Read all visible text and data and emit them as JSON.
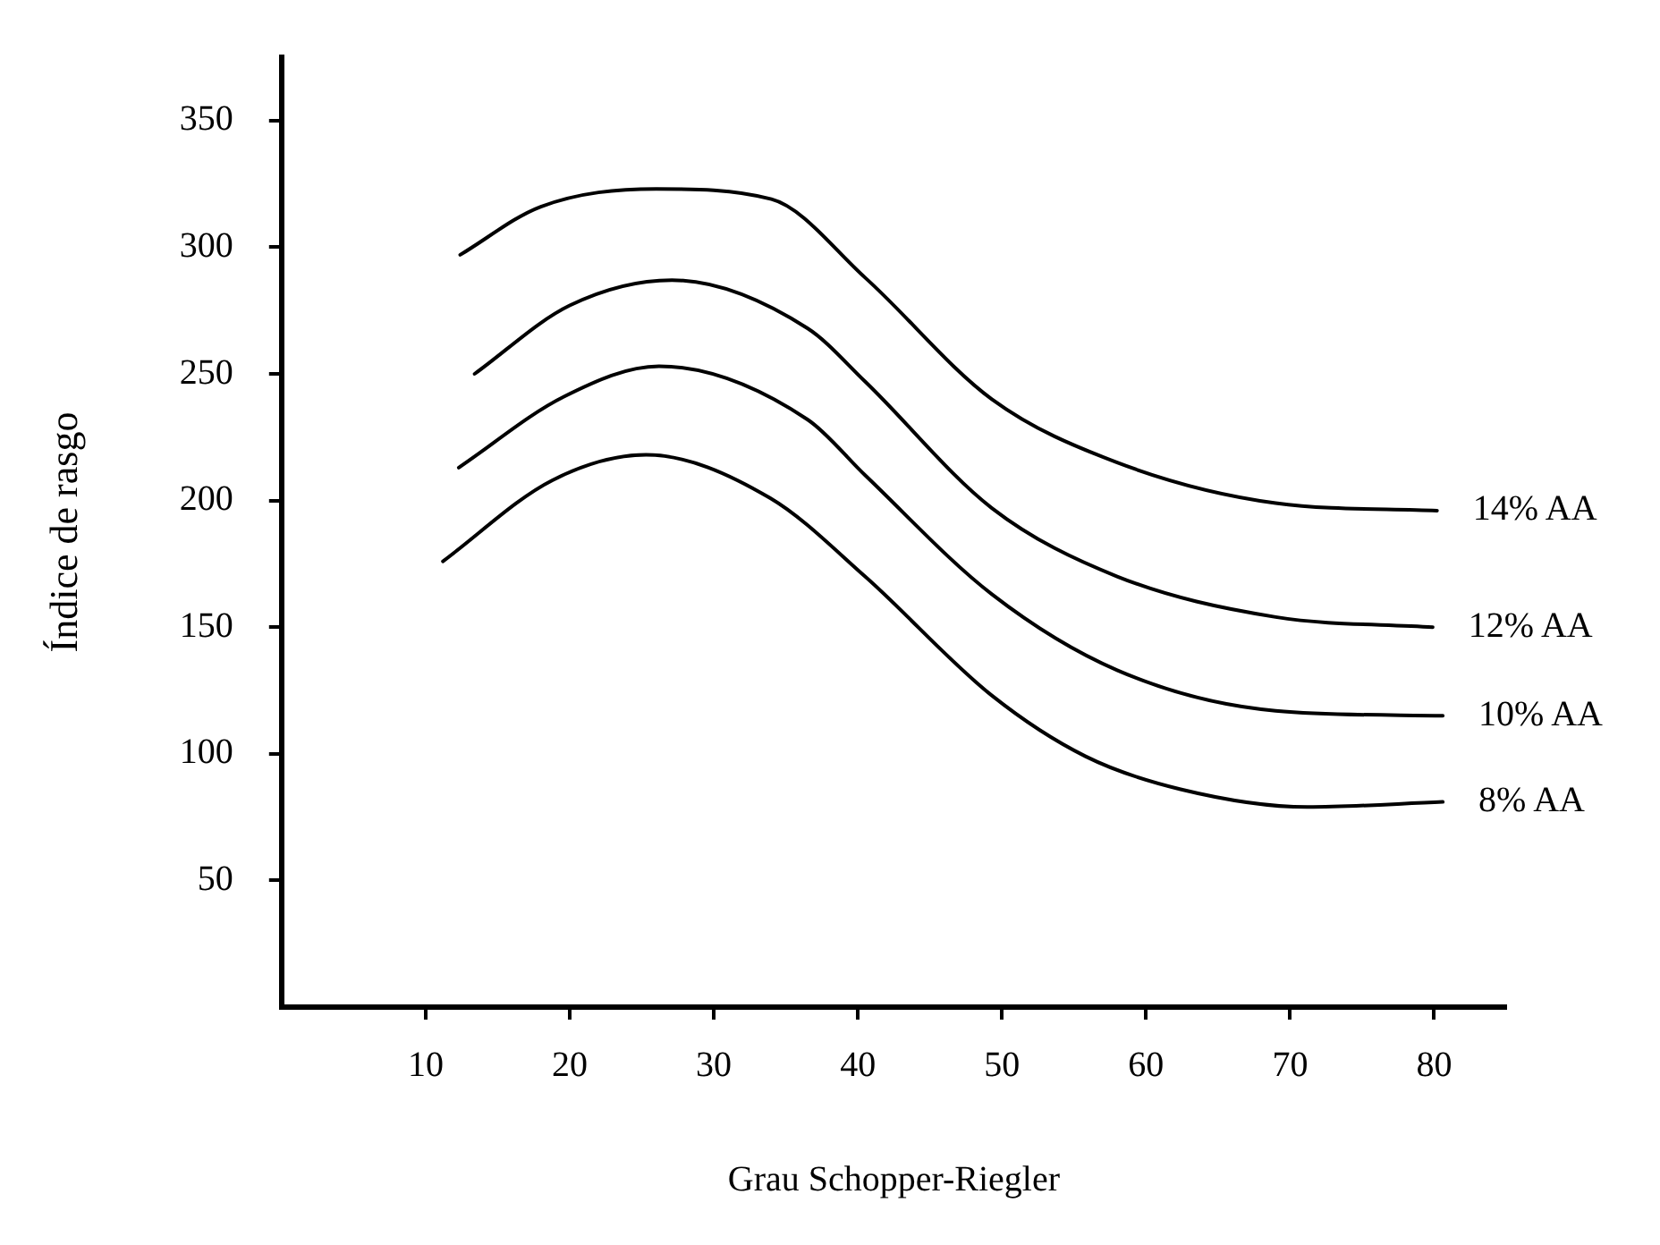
{
  "chart_data": {
    "type": "line",
    "xlabel": "Grau Schopper-Riegler",
    "ylabel": "Índice de rasgo",
    "xlim": [
      0,
      85
    ],
    "ylim": [
      0,
      375
    ],
    "xticks": [
      10,
      20,
      30,
      40,
      50,
      60,
      70,
      80
    ],
    "yticks": [
      50,
      100,
      150,
      200,
      250,
      300,
      350
    ],
    "grid": false,
    "legend": false,
    "marker": "none",
    "line_style": "solid",
    "series": [
      {
        "name": "14% AA",
        "color": "#000000",
        "x": [
          12.4,
          18,
          26,
          34,
          40.5,
          49.3,
          58,
          69,
          80.2
        ],
        "values": [
          297,
          316,
          323,
          319,
          288,
          240,
          215,
          199,
          196
        ]
      },
      {
        "name": "12% AA",
        "color": "#000000",
        "x": [
          13.4,
          20,
          27.1,
          36.5,
          40.5,
          49.3,
          58,
          69,
          79.9
        ],
        "values": [
          250,
          277,
          287,
          268,
          247,
          197,
          170,
          154,
          150
        ]
      },
      {
        "name": "10% AA",
        "color": "#000000",
        "x": [
          12.3,
          19.6,
          26.2,
          36.5,
          40.5,
          49.3,
          58,
          69,
          80.6
        ],
        "values": [
          213,
          241,
          253,
          232,
          210,
          163,
          133,
          117,
          115
        ]
      },
      {
        "name": "8% AA",
        "color": "#000000",
        "x": [
          11.2,
          18.8,
          25.3,
          33.9,
          40.5,
          49.3,
          55.8,
          62.4,
          71.2,
          80.6
        ],
        "values": [
          176,
          208,
          218,
          201,
          170,
          123,
          99,
          86,
          79,
          81
        ]
      }
    ]
  }
}
